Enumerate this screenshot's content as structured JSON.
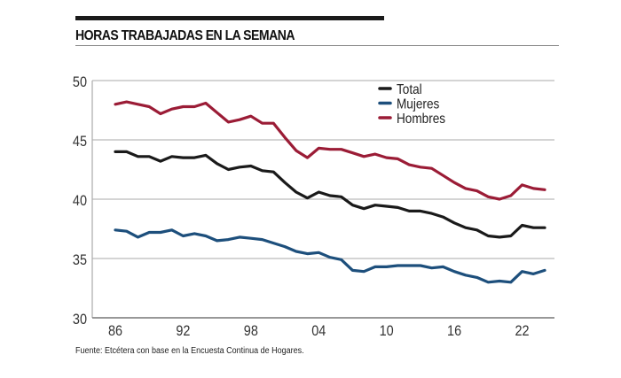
{
  "title": "HORAS TRABAJADAS EN LA SEMANA",
  "source": "Fuente: Etcétera con base en la Encuesta Continua de Hogares.",
  "chart_data": {
    "type": "line",
    "title": "HORAS TRABAJADAS EN LA SEMANA",
    "xlabel": "",
    "ylabel": "",
    "ylim": [
      30,
      50
    ],
    "xlim": [
      1986,
      2024
    ],
    "grid": true,
    "legend_position": "top-right",
    "yticks": [
      30,
      35,
      40,
      45,
      50
    ],
    "xticks": [
      {
        "value": 1986,
        "label": "86"
      },
      {
        "value": 1992,
        "label": "92"
      },
      {
        "value": 1998,
        "label": "98"
      },
      {
        "value": 2004,
        "label": "04"
      },
      {
        "value": 2010,
        "label": "10"
      },
      {
        "value": 2016,
        "label": "16"
      },
      {
        "value": 2022,
        "label": "22"
      }
    ],
    "x": [
      1986,
      1987,
      1988,
      1989,
      1990,
      1991,
      1992,
      1993,
      1994,
      1995,
      1996,
      1997,
      1998,
      1999,
      2000,
      2001,
      2002,
      2003,
      2004,
      2005,
      2006,
      2007,
      2008,
      2009,
      2010,
      2011,
      2012,
      2013,
      2014,
      2015,
      2016,
      2017,
      2018,
      2019,
      2020,
      2021,
      2022,
      2023,
      2024
    ],
    "series": [
      {
        "name": "Total",
        "color": "#1a1a1a",
        "values": [
          44.0,
          44.0,
          43.6,
          43.6,
          43.2,
          43.6,
          43.5,
          43.5,
          43.7,
          43.0,
          42.5,
          42.7,
          42.8,
          42.4,
          42.3,
          41.4,
          40.6,
          40.1,
          40.6,
          40.3,
          40.2,
          39.5,
          39.2,
          39.5,
          39.4,
          39.3,
          39.0,
          39.0,
          38.8,
          38.5,
          38.0,
          37.6,
          37.4,
          36.9,
          36.8,
          36.9,
          37.8,
          37.6,
          37.6
        ]
      },
      {
        "name": "Mujeres",
        "color": "#1d4f7c",
        "values": [
          37.4,
          37.3,
          36.8,
          37.2,
          37.2,
          37.4,
          36.9,
          37.1,
          36.9,
          36.5,
          36.6,
          36.8,
          36.7,
          36.6,
          36.3,
          36.0,
          35.6,
          35.4,
          35.5,
          35.1,
          34.9,
          34.0,
          33.9,
          34.3,
          34.3,
          34.4,
          34.4,
          34.4,
          34.2,
          34.3,
          33.9,
          33.6,
          33.4,
          33.0,
          33.1,
          33.0,
          33.9,
          33.7,
          34.0
        ]
      },
      {
        "name": "Hombres",
        "color": "#9b1c36",
        "values": [
          48.0,
          48.2,
          48.0,
          47.8,
          47.2,
          47.6,
          47.8,
          47.8,
          48.1,
          47.3,
          46.5,
          46.7,
          47.0,
          46.4,
          46.4,
          45.2,
          44.1,
          43.5,
          44.3,
          44.2,
          44.2,
          43.9,
          43.6,
          43.8,
          43.5,
          43.4,
          42.9,
          42.7,
          42.6,
          42.0,
          41.4,
          40.9,
          40.7,
          40.2,
          40.0,
          40.3,
          41.2,
          40.9,
          40.8
        ]
      }
    ]
  }
}
